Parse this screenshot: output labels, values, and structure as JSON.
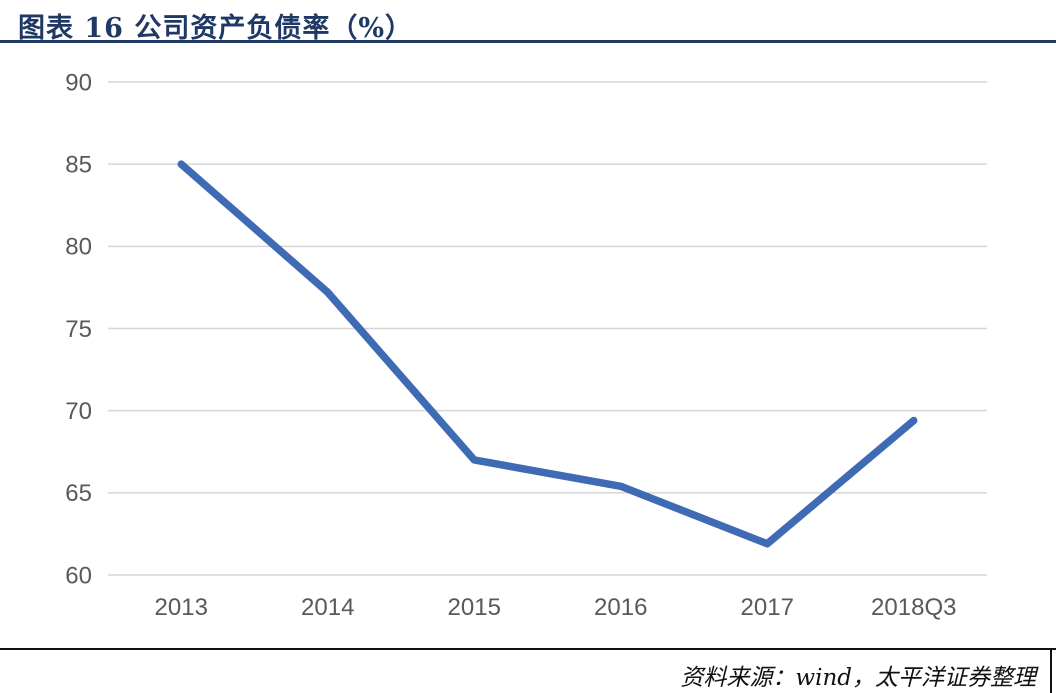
{
  "figure": {
    "title": "图表 16  公司资产负债率（%）",
    "source": "资料来源：wind，太平洋证券整理"
  },
  "colors": {
    "title_navy": "#1F3864",
    "line_blue": "#3E6BB4",
    "grid_gray": "#D6D6D6",
    "axis_text_gray": "#595959",
    "rule_black": "#111111"
  },
  "chart_data": {
    "type": "line",
    "title": "公司资产负债率（%）",
    "categories": [
      "2013",
      "2014",
      "2015",
      "2016",
      "2017",
      "2018Q3"
    ],
    "series": [
      {
        "name": "公司资产负债率",
        "values": [
          85.0,
          77.2,
          67.0,
          65.4,
          61.9,
          69.4
        ]
      }
    ],
    "xlabel": "",
    "ylabel": "",
    "ylim": [
      60,
      90
    ],
    "yticks": [
      60,
      65,
      70,
      75,
      80,
      85,
      90
    ],
    "grid": true,
    "legend_position": "none"
  }
}
